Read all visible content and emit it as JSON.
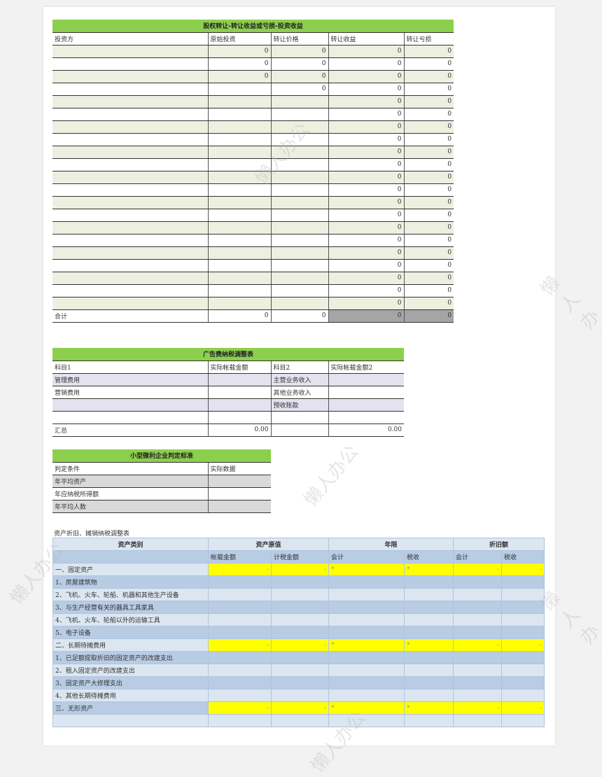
{
  "watermark": "懒人办公",
  "equity": {
    "title": "股权转让-转让收益或亏损-投资收益",
    "headers": [
      "投资方",
      "原始投资",
      "转让价格",
      "转让收益",
      "转让亏损"
    ],
    "rows": [
      [
        "",
        "0",
        "0",
        "0",
        "0"
      ],
      [
        "",
        "0",
        "0",
        "0",
        "0"
      ],
      [
        "",
        "0",
        "0",
        "0",
        "0"
      ],
      [
        "",
        "",
        "0",
        "0",
        "0"
      ],
      [
        "",
        "",
        "",
        "0",
        "0"
      ],
      [
        "",
        "",
        "",
        "0",
        "0"
      ],
      [
        "",
        "",
        "",
        "0",
        "0"
      ],
      [
        "",
        "",
        "",
        "0",
        "0"
      ],
      [
        "",
        "",
        "",
        "0",
        "0"
      ],
      [
        "",
        "",
        "",
        "0",
        "0"
      ],
      [
        "",
        "",
        "",
        "0",
        "0"
      ],
      [
        "",
        "",
        "",
        "0",
        "0"
      ],
      [
        "",
        "",
        "",
        "0",
        "0"
      ],
      [
        "",
        "",
        "",
        "0",
        "0"
      ],
      [
        "",
        "",
        "",
        "0",
        "0"
      ],
      [
        "",
        "",
        "",
        "0",
        "0"
      ],
      [
        "",
        "",
        "",
        "0",
        "0"
      ],
      [
        "",
        "",
        "",
        "0",
        "0"
      ],
      [
        "",
        "",
        "",
        "0",
        "0"
      ],
      [
        "",
        "",
        "",
        "0",
        "0"
      ],
      [
        "",
        "",
        "",
        "0",
        "0"
      ]
    ],
    "total": [
      "合计",
      "0",
      "0",
      "0",
      "0"
    ]
  },
  "ad": {
    "title": "广告费纳税调整表",
    "headers": [
      "科目1",
      "实际帐载金额",
      "科目2",
      "实际帐载金额2"
    ],
    "rows": [
      [
        "管理费用",
        "",
        "主营业务收入",
        ""
      ],
      [
        "营销费用",
        "",
        "其他业务收入",
        ""
      ],
      [
        "",
        "",
        "预收账款",
        ""
      ],
      [
        "",
        "",
        "",
        ""
      ]
    ],
    "total": [
      "汇总",
      "0.00",
      "",
      "0.00"
    ]
  },
  "small": {
    "title": "小型微利企业判定标准",
    "headers": [
      "判定条件",
      "实际数据"
    ],
    "rows": [
      [
        "年平均资产",
        ""
      ],
      [
        "年应纳税所得额",
        ""
      ],
      [
        "年平均人数",
        ""
      ]
    ]
  },
  "dep": {
    "caption": "资产折旧、摊销纳税调整表",
    "groups": [
      "资产类别",
      "资产原值",
      "年限",
      "折旧额"
    ],
    "subheaders": [
      "",
      "帐载金额",
      "计税金额",
      "会计",
      "税收",
      "会计",
      "税收"
    ],
    "rows": [
      {
        "label": "一、固定资产",
        "section": true,
        "cells": [
          "-",
          "-",
          "*",
          "*",
          "-",
          "-"
        ]
      },
      {
        "label": "1、房屋建筑物"
      },
      {
        "label": "2、飞机、火车、轮船、机器和其他生产设备"
      },
      {
        "label": "3、与生产经营有关的器具工具家具"
      },
      {
        "label": "4、飞机、火车、轮船以外的运输工具"
      },
      {
        "label": "5、电子设备"
      },
      {
        "label": "二、长期待摊费用",
        "section": true,
        "cells": [
          "-",
          "-",
          "*",
          "*",
          "-",
          "-"
        ]
      },
      {
        "label": "1、已足额提取折旧的固定资产的改建支出"
      },
      {
        "label": "2、租入固定资产的改建支出"
      },
      {
        "label": "3、固定资产大修理支出"
      },
      {
        "label": "4、其他长期待摊费用"
      },
      {
        "label": "三、无形资产",
        "section": true,
        "cells": [
          "-",
          "-",
          "*",
          "*",
          "-",
          "-"
        ]
      },
      {
        "label": ""
      }
    ]
  },
  "colors": {
    "title_green": "#8ccf4d",
    "row_green": "#edf0e1",
    "row_purple": "#e6e1ef",
    "row_gray": "#d9d9d9",
    "blue_light": "#dce6f1",
    "blue_dark": "#b8cce4",
    "highlight": "#ffff00"
  }
}
